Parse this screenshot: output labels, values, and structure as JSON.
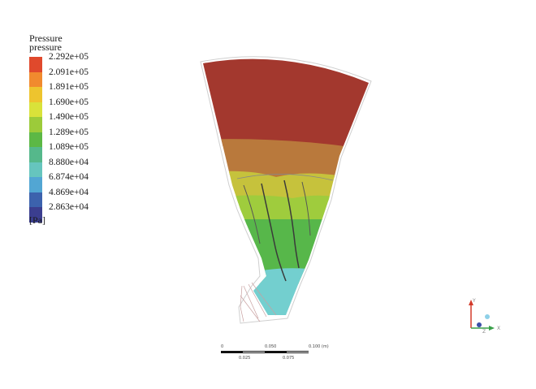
{
  "legend": {
    "title_line1": "Pressure",
    "title_line2": "pressure",
    "unit": "[Pa]",
    "levels": [
      {
        "label": "2.292e+05",
        "color": "#e0492c"
      },
      {
        "label": "2.091e+05",
        "color": "#f18a2e"
      },
      {
        "label": "1.891e+05",
        "color": "#eec42e"
      },
      {
        "label": "1.690e+05",
        "color": "#d9e23a"
      },
      {
        "label": "1.490e+05",
        "color": "#9ccb3a"
      },
      {
        "label": "1.289e+05",
        "color": "#5cb845"
      },
      {
        "label": "1.089e+05",
        "color": "#55b88b"
      },
      {
        "label": "8.880e+04",
        "color": "#66c5be"
      },
      {
        "label": "6.874e+04",
        "color": "#52a6d3"
      },
      {
        "label": "4.869e+04",
        "color": "#3c62ad"
      },
      {
        "label": "2.863e+04",
        "color": "#3b3e8f"
      }
    ]
  },
  "field_colors": {
    "high": "#a3382e",
    "upper": "#b9793c",
    "mid": "#c6c23c",
    "midlow": "#9fcc3d",
    "low": "#57b74a",
    "outlet": "#73cfcf",
    "boundary": "#9a9a9a"
  },
  "scale_bar": {
    "tick_0": "0",
    "tick_mid": "0.050",
    "tick_end": "0.100  (m)",
    "tick_q1": "0.025",
    "tick_q3": "0.075"
  },
  "triad": {
    "x_label": "X",
    "y_label": "Y",
    "z_label": "Z"
  }
}
